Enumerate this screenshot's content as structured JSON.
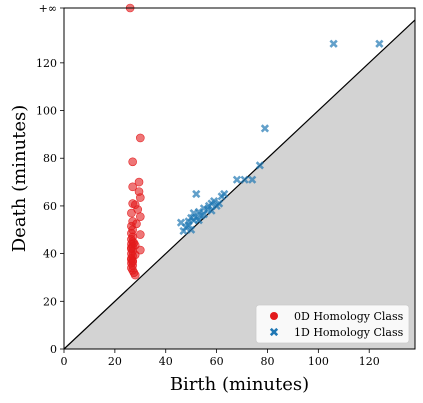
{
  "chart_data": {
    "type": "scatter",
    "title": "",
    "xlabel": "Birth (minutes)",
    "ylabel": "Death (minutes)",
    "xlim": [
      0,
      138
    ],
    "ylim": [
      0,
      143
    ],
    "xticks": [
      0,
      20,
      40,
      60,
      80,
      100,
      120
    ],
    "yticks": [
      0,
      20,
      40,
      60,
      80,
      100,
      120
    ],
    "infinity_value": 143,
    "infinity_label": "+∞",
    "grid": false,
    "legend_position": "bottom-right",
    "diagonal": true,
    "series": [
      {
        "name": "0D Homology Class",
        "marker": "circle",
        "color": "#e31a1c",
        "points": [
          [
            26,
            143
          ],
          [
            30,
            88.5
          ],
          [
            27,
            78.5
          ],
          [
            29.5,
            70
          ],
          [
            27,
            68
          ],
          [
            29.5,
            66
          ],
          [
            30,
            63.5
          ],
          [
            27,
            61
          ],
          [
            28,
            60.5
          ],
          [
            29,
            58.5
          ],
          [
            26.5,
            57
          ],
          [
            30,
            55.5
          ],
          [
            27,
            53.5
          ],
          [
            28.5,
            52.5
          ],
          [
            26.5,
            51.5
          ],
          [
            27,
            50
          ],
          [
            26.5,
            48.5
          ],
          [
            30,
            48
          ],
          [
            27,
            47
          ],
          [
            26.5,
            46
          ],
          [
            27,
            45
          ],
          [
            26.5,
            44
          ],
          [
            28,
            43.5
          ],
          [
            27,
            43
          ],
          [
            26.5,
            42
          ],
          [
            30,
            41.5
          ],
          [
            27,
            41
          ],
          [
            26.5,
            40
          ],
          [
            28,
            39.5
          ],
          [
            27,
            39
          ],
          [
            26.5,
            38
          ],
          [
            27,
            37
          ],
          [
            26.5,
            36
          ],
          [
            27,
            35
          ],
          [
            26.5,
            34
          ],
          [
            27,
            33
          ],
          [
            27.5,
            32
          ],
          [
            28,
            31
          ],
          [
            26.5,
            37.5
          ],
          [
            27,
            36.5
          ],
          [
            26.5,
            42.5
          ],
          [
            27.5,
            44.5
          ]
        ]
      },
      {
        "name": "1D Homology Class",
        "marker": "x",
        "color": "#1f77b4",
        "points": [
          [
            106,
            128
          ],
          [
            124,
            128
          ],
          [
            79,
            92.5
          ],
          [
            77,
            77
          ],
          [
            74,
            71
          ],
          [
            71,
            71
          ],
          [
            68,
            71
          ],
          [
            63,
            65
          ],
          [
            62,
            64
          ],
          [
            58,
            61
          ],
          [
            60,
            60
          ],
          [
            55,
            59
          ],
          [
            52,
            65
          ],
          [
            56.5,
            58.5
          ],
          [
            53,
            57.5
          ],
          [
            51,
            57
          ],
          [
            50,
            55
          ],
          [
            46,
            53
          ],
          [
            49,
            52
          ],
          [
            47,
            49.5
          ],
          [
            48,
            51
          ],
          [
            52,
            55
          ],
          [
            54,
            56
          ],
          [
            57,
            60
          ],
          [
            59,
            62
          ],
          [
            61,
            61
          ],
          [
            50,
            50
          ],
          [
            51,
            54
          ],
          [
            49,
            53.5
          ],
          [
            53,
            54
          ],
          [
            55,
            56.5
          ],
          [
            58,
            58
          ]
        ]
      }
    ]
  }
}
